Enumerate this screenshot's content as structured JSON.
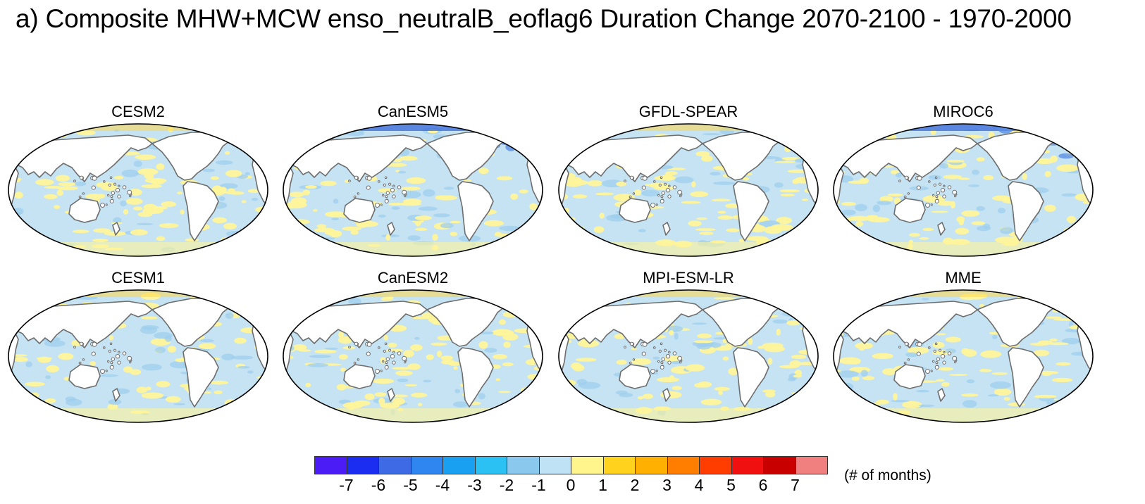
{
  "title": "a) Composite MHW+MCW enso_neutralB_eoflag6 Duration Change 2070-2100 - 1970-2000",
  "panels": [
    {
      "name": "CESM2",
      "blue_extremes": false
    },
    {
      "name": "CanESM5",
      "blue_extremes": true
    },
    {
      "name": "GFDL-SPEAR",
      "blue_extremes": false
    },
    {
      "name": "MIROC6",
      "blue_extremes": true
    },
    {
      "name": "CESM1",
      "blue_extremes": false
    },
    {
      "name": "CanESM2",
      "blue_extremes": false
    },
    {
      "name": "MPI-ESM-LR",
      "blue_extremes": false
    },
    {
      "name": "MME",
      "blue_extremes": false
    }
  ],
  "colorbar": {
    "units": "(# of months)",
    "tick_labels": [
      "-7",
      "-6",
      "-5",
      "-4",
      "-3",
      "-2",
      "-1",
      "0",
      "1",
      "2",
      "3",
      "4",
      "5",
      "6",
      "7"
    ],
    "colors": [
      "#4b1cf5",
      "#1b2df0",
      "#3f6ae6",
      "#2f86f0",
      "#1aa0f0",
      "#2bc1f2",
      "#8ac8ee",
      "#bfe2f5",
      "#fff58c",
      "#ffd21e",
      "#ffb000",
      "#ff7e00",
      "#ff3d00",
      "#f01010",
      "#c80000",
      "#f08080"
    ]
  },
  "ocean_color": "#c5e3f3",
  "land_color": "#ffffff",
  "coast_color": "#6e6e6e",
  "warm_color": "#fff49a",
  "cool_color": "#9fcfee",
  "deep_blue": "#2e5fd8"
}
